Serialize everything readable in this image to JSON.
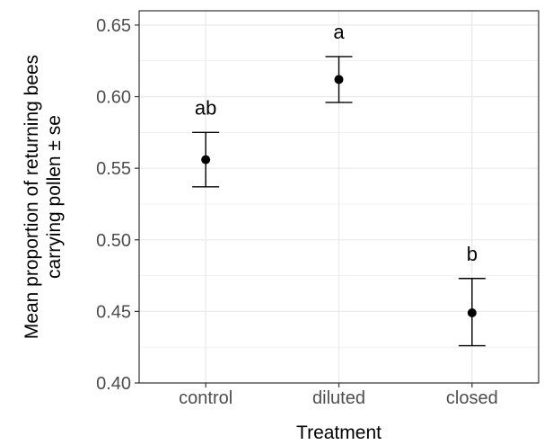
{
  "chart_data": {
    "type": "scatter",
    "title": "",
    "xlabel": "Treatment",
    "ylabel_lines": [
      "Mean proportion of returning bees",
      "carrying pollen ± se"
    ],
    "categories": [
      "control",
      "diluted",
      "closed"
    ],
    "values": [
      0.556,
      0.612,
      0.449
    ],
    "se_lower": [
      0.537,
      0.596,
      0.426
    ],
    "se_upper": [
      0.575,
      0.628,
      0.473
    ],
    "significance_letters": [
      "ab",
      "a",
      "b"
    ],
    "ylim": [
      0.4,
      0.66
    ],
    "yticks": [
      "0.40",
      "0.45",
      "0.50",
      "0.55",
      "0.60",
      "0.65"
    ],
    "grid": true,
    "colors": {
      "points": "#000000",
      "grid": "#ebebeb",
      "panel_border": "#333333"
    }
  }
}
